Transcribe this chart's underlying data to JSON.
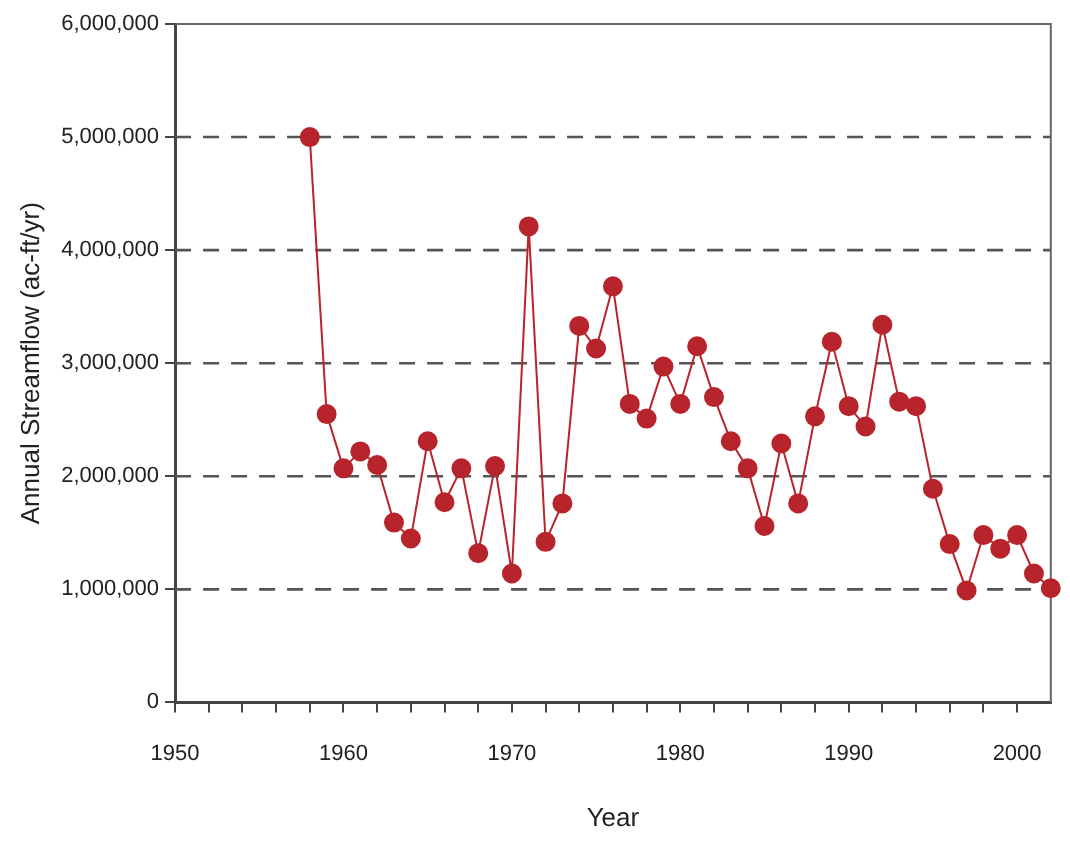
{
  "chart_data": {
    "type": "line",
    "xlabel": "Year",
    "ylabel": "Annual Streamflow (ac-ft/yr)",
    "x": [
      1958,
      1959,
      1960,
      1961,
      1962,
      1963,
      1964,
      1965,
      1966,
      1967,
      1968,
      1969,
      1970,
      1971,
      1972,
      1973,
      1974,
      1975,
      1976,
      1977,
      1978,
      1979,
      1980,
      1981,
      1982,
      1983,
      1984,
      1985,
      1986,
      1987,
      1988,
      1989,
      1990,
      1991,
      1992,
      1993,
      1994,
      1995,
      1996,
      1997,
      1998,
      1999,
      2000,
      2001,
      2002
    ],
    "series": [
      {
        "color": "#b8242c",
        "values": [
          5000000,
          2550000,
          2070000,
          2220000,
          2100000,
          1590000,
          1450000,
          2310000,
          1770000,
          2070000,
          1320000,
          2090000,
          1140000,
          4210000,
          1420000,
          1760000,
          3330000,
          3130000,
          3680000,
          2640000,
          2510000,
          2970000,
          2640000,
          3150000,
          2700000,
          2310000,
          2070000,
          1560000,
          2290000,
          1760000,
          2530000,
          3190000,
          2620000,
          2440000,
          3340000,
          2660000,
          2620000,
          1890000,
          1400000,
          990000,
          1480000,
          1360000,
          1480000,
          1140000,
          1010000
        ]
      }
    ],
    "xlim": [
      1950,
      2002
    ],
    "xticks": [
      1950,
      {
        "value": 1952,
        "label": null
      },
      {
        "value": 1954,
        "label": null
      },
      {
        "value": 1956,
        "label": null
      },
      {
        "value": 1958,
        "label": null
      },
      1960,
      {
        "value": 1962,
        "label": null
      },
      {
        "value": 1964,
        "label": null
      },
      {
        "value": 1966,
        "label": null
      },
      {
        "value": 1968,
        "label": null
      },
      1970,
      {
        "value": 1972,
        "label": null
      },
      {
        "value": 1974,
        "label": null
      },
      {
        "value": 1976,
        "label": null
      },
      {
        "value": 1978,
        "label": null
      },
      1980,
      {
        "value": 1982,
        "label": null
      },
      {
        "value": 1984,
        "label": null
      },
      {
        "value": 1986,
        "label": null
      },
      {
        "value": 1988,
        "label": null
      },
      1990,
      {
        "value": 1992,
        "label": null
      },
      {
        "value": 1994,
        "label": null
      },
      {
        "value": 1996,
        "label": null
      },
      {
        "value": 1998,
        "label": null
      },
      2000
    ],
    "ylim": [
      0,
      6000000
    ],
    "yticks": [
      0,
      {
        "value": 1000000,
        "label": "1,000,000"
      },
      {
        "value": 2000000,
        "label": "2,000,000"
      },
      {
        "value": 3000000,
        "label": "3,000,000"
      },
      {
        "value": 4000000,
        "label": "4,000,000"
      },
      {
        "value": 5000000,
        "label": "5,000,000"
      },
      {
        "value": 6000000,
        "label": "6,000,000"
      }
    ],
    "grid": "y",
    "marker": "circle",
    "line_style": "solid",
    "legend": false
  }
}
